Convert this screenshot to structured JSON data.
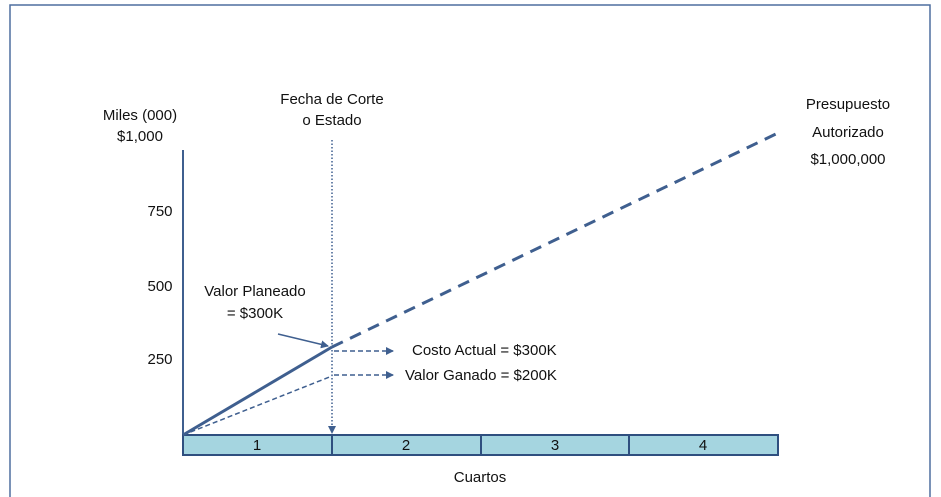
{
  "axis": {
    "y_title": "Miles (000)",
    "y_labels": [
      "$1,000",
      "750",
      "500",
      "250"
    ],
    "x_title": "Cuartos",
    "quarters": [
      "1",
      "2",
      "3",
      "4"
    ]
  },
  "annotations": {
    "status_date": [
      "Fecha de Corte",
      "o Estado"
    ],
    "budget": [
      "Presupuesto",
      "Autorizado",
      "$1,000,000"
    ],
    "planned_value": [
      "Valor Planeado",
      "= $300K"
    ],
    "actual_cost": "Costo Actual = $300K",
    "earned_value": "Valor Ganado = $200K"
  }
}
